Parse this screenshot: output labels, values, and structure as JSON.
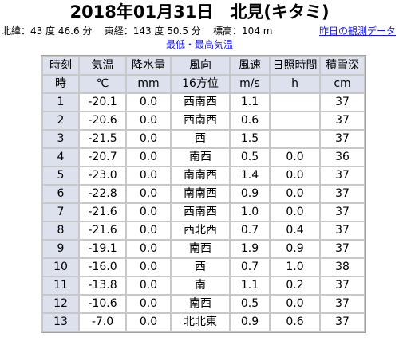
{
  "title": "2018年01月31日　北見(キタミ)",
  "meta": {
    "latitude": "北緯：43 度 46.6 分",
    "longitude": "東経：143 度 50.5 分",
    "elevation": "標高：104 m",
    "prev_day_link": "昨日の観測データ",
    "minmax_link": "最低・最高気温"
  },
  "table": {
    "headers": [
      "時刻",
      "気温",
      "降水量",
      "風向",
      "風速",
      "日照時間",
      "積雪深"
    ],
    "units": [
      "時",
      "℃",
      "mm",
      "16方位",
      "m/s",
      "h",
      "cm"
    ],
    "rows": [
      [
        "1",
        "-20.1",
        "0.0",
        "西南西",
        "1.1",
        "",
        "37"
      ],
      [
        "2",
        "-20.6",
        "0.0",
        "西南西",
        "0.6",
        "",
        "37"
      ],
      [
        "3",
        "-21.5",
        "0.0",
        "西",
        "1.5",
        "",
        "37"
      ],
      [
        "4",
        "-20.7",
        "0.0",
        "南西",
        "0.5",
        "0.0",
        "36"
      ],
      [
        "5",
        "-23.0",
        "0.0",
        "南南西",
        "1.4",
        "0.0",
        "37"
      ],
      [
        "6",
        "-22.8",
        "0.0",
        "南南西",
        "0.9",
        "0.0",
        "37"
      ],
      [
        "7",
        "-21.6",
        "0.0",
        "西南西",
        "1.0",
        "0.0",
        "37"
      ],
      [
        "8",
        "-21.6",
        "0.0",
        "西北西",
        "0.7",
        "0.4",
        "37"
      ],
      [
        "9",
        "-19.1",
        "0.0",
        "南西",
        "1.9",
        "0.9",
        "37"
      ],
      [
        "10",
        "-16.0",
        "0.0",
        "西",
        "0.7",
        "1.0",
        "38"
      ],
      [
        "11",
        "-13.8",
        "0.0",
        "南",
        "1.1",
        "0.2",
        "37"
      ],
      [
        "12",
        "-10.6",
        "0.0",
        "南西",
        "0.5",
        "0.0",
        "37"
      ],
      [
        "13",
        "-7.0",
        "0.0",
        "北北東",
        "0.9",
        "0.6",
        "37"
      ]
    ]
  }
}
